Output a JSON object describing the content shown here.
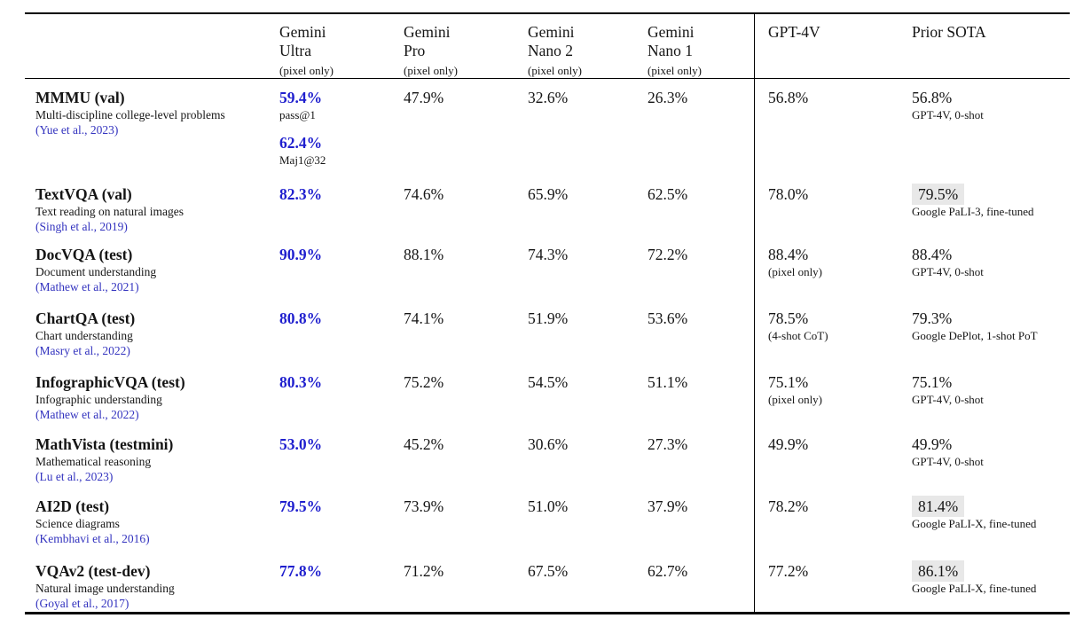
{
  "colors": {
    "gemini_value_blue": "#1f1fce",
    "citation_blue": "#3333bf",
    "sota_highlight_gray": "#e8e8e8",
    "rule_black": "#000000"
  },
  "table": {
    "columns": [
      {
        "line1": "Gemini",
        "line2": "Ultra",
        "note": "(pixel only)"
      },
      {
        "line1": "Gemini",
        "line2": "Pro",
        "note": "(pixel only)"
      },
      {
        "line1": "Gemini",
        "line2": "Nano 2",
        "note": "(pixel only)"
      },
      {
        "line1": "Gemini",
        "line2": "Nano 1",
        "note": "(pixel only)"
      },
      {
        "line1": "GPT-4V",
        "line2": "",
        "note": ""
      },
      {
        "line1": "Prior SOTA",
        "line2": "",
        "note": ""
      }
    ],
    "rows": [
      {
        "benchmark": "MMMU (val)",
        "description": "Multi-discipline college-level problems",
        "citation": "(Yue et al., 2023)",
        "ultra": {
          "value": "59.4%",
          "note": "pass@1",
          "value2": "62.4%",
          "note2": "Maj1@32"
        },
        "pro": "47.9%",
        "nano2": "32.6%",
        "nano1": "26.3%",
        "gpt4v": {
          "value": "56.8%",
          "note": ""
        },
        "sota": {
          "value": "56.8%",
          "note": "GPT-4V, 0-shot",
          "highlight": false
        }
      },
      {
        "benchmark": "TextVQA (val)",
        "description": "Text reading on natural images",
        "citation": "(Singh et al., 2019)",
        "ultra": {
          "value": "82.3%",
          "note": ""
        },
        "pro": "74.6%",
        "nano2": "65.9%",
        "nano1": "62.5%",
        "gpt4v": {
          "value": "78.0%",
          "note": ""
        },
        "sota": {
          "value": "79.5%",
          "note": "Google PaLI-3, fine-tuned",
          "highlight": true
        }
      },
      {
        "benchmark": "DocVQA (test)",
        "description": "Document understanding",
        "citation": "(Mathew et al., 2021)",
        "ultra": {
          "value": "90.9%",
          "note": ""
        },
        "pro": "88.1%",
        "nano2": "74.3%",
        "nano1": "72.2%",
        "gpt4v": {
          "value": "88.4%",
          "note": "(pixel only)"
        },
        "sota": {
          "value": "88.4%",
          "note": "GPT-4V, 0-shot",
          "highlight": false
        }
      },
      {
        "benchmark": "ChartQA (test)",
        "description": "Chart understanding",
        "citation": "(Masry et al., 2022)",
        "ultra": {
          "value": "80.8%",
          "note": ""
        },
        "pro": "74.1%",
        "nano2": "51.9%",
        "nano1": "53.6%",
        "gpt4v": {
          "value": "78.5%",
          "note": "(4-shot CoT)"
        },
        "sota": {
          "value": "79.3%",
          "note": "Google DePlot, 1-shot PoT",
          "highlight": false
        }
      },
      {
        "benchmark": "InfographicVQA (test)",
        "description": "Infographic understanding",
        "citation": "(Mathew et al., 2022)",
        "ultra": {
          "value": "80.3%",
          "note": ""
        },
        "pro": "75.2%",
        "nano2": "54.5%",
        "nano1": "51.1%",
        "gpt4v": {
          "value": "75.1%",
          "note": "(pixel only)"
        },
        "sota": {
          "value": "75.1%",
          "note": "GPT-4V, 0-shot",
          "highlight": false
        }
      },
      {
        "benchmark": "MathVista (testmini)",
        "description": "Mathematical reasoning",
        "citation": "(Lu et al., 2023)",
        "ultra": {
          "value": "53.0%",
          "note": ""
        },
        "pro": "45.2%",
        "nano2": "30.6%",
        "nano1": "27.3%",
        "gpt4v": {
          "value": "49.9%",
          "note": ""
        },
        "sota": {
          "value": "49.9%",
          "note": "GPT-4V, 0-shot",
          "highlight": false
        }
      },
      {
        "benchmark": "AI2D (test)",
        "description": "Science diagrams",
        "citation": "(Kembhavi et al., 2016)",
        "ultra": {
          "value": "79.5%",
          "note": ""
        },
        "pro": "73.9%",
        "nano2": "51.0%",
        "nano1": "37.9%",
        "gpt4v": {
          "value": "78.2%",
          "note": ""
        },
        "sota": {
          "value": "81.4%",
          "note": "Google PaLI-X, fine-tuned",
          "highlight": true
        }
      },
      {
        "benchmark": "VQAv2 (test-dev)",
        "description": "Natural image understanding",
        "citation": "(Goyal et al., 2017)",
        "ultra": {
          "value": "77.8%",
          "note": ""
        },
        "pro": "71.2%",
        "nano2": "67.5%",
        "nano1": "62.7%",
        "gpt4v": {
          "value": "77.2%",
          "note": ""
        },
        "sota": {
          "value": "86.1%",
          "note": "Google PaLI-X, fine-tuned",
          "highlight": true
        }
      }
    ]
  }
}
